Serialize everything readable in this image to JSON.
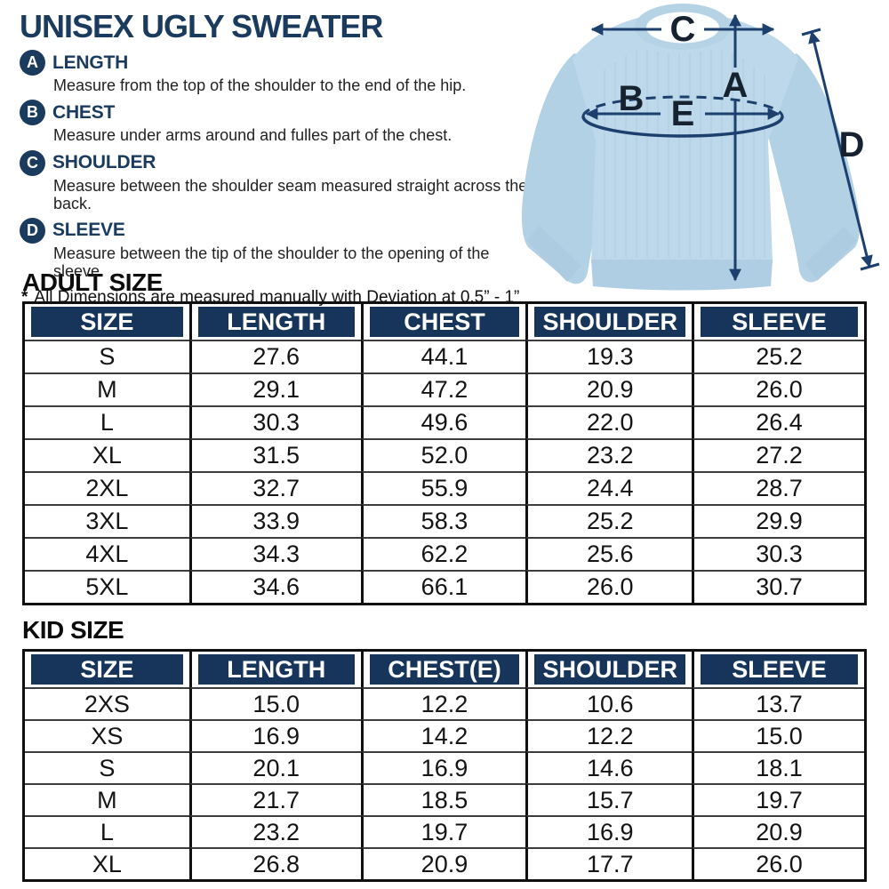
{
  "header": {
    "title": "UNISEX UGLY SWEATER"
  },
  "measurements": [
    {
      "key": "A",
      "label": "LENGTH",
      "description": "Measure from the top of the shoulder to the end of the hip."
    },
    {
      "key": "B",
      "label": "CHEST",
      "description": "Measure under arms around and fulles part of the chest."
    },
    {
      "key": "C",
      "label": "SHOULDER",
      "description": "Measure between the shoulder seam measured straight across the back."
    },
    {
      "key": "D",
      "label": "SLEEVE",
      "description": "Measure between the tip of the shoulder to the opening of the sleeve."
    }
  ],
  "note": {
    "star": "*",
    "text": "All Dimensions are measured manually with Deviation at 0.5” - 1”"
  },
  "diagram": {
    "letters": {
      "a": "A",
      "b": "B",
      "c": "C",
      "d": "D",
      "e": "E"
    }
  },
  "adult_table": {
    "heading": "ADULT SIZE",
    "columns": [
      "SIZE",
      "LENGTH",
      "CHEST",
      "SHOULDER",
      "SLEEVE"
    ],
    "rows": [
      [
        "S",
        "27.6",
        "44.1",
        "19.3",
        "25.2"
      ],
      [
        "M",
        "29.1",
        "47.2",
        "20.9",
        "26.0"
      ],
      [
        "L",
        "30.3",
        "49.6",
        "22.0",
        "26.4"
      ],
      [
        "XL",
        "31.5",
        "52.0",
        "23.2",
        "27.2"
      ],
      [
        "2XL",
        "32.7",
        "55.9",
        "24.4",
        "28.7"
      ],
      [
        "3XL",
        "33.9",
        "58.3",
        "25.2",
        "29.9"
      ],
      [
        "4XL",
        "34.3",
        "62.2",
        "25.6",
        "30.3"
      ],
      [
        "5XL",
        "34.6",
        "66.1",
        "26.0",
        "30.7"
      ]
    ]
  },
  "kid_table": {
    "heading": "KID SIZE",
    "columns": [
      "SIZE",
      "LENGTH",
      "CHEST(E)",
      "SHOULDER",
      "SLEEVE"
    ],
    "rows": [
      [
        "2XS",
        "15.0",
        "12.2",
        "10.6",
        "13.7"
      ],
      [
        "XS",
        "16.9",
        "14.2",
        "12.2",
        "15.0"
      ],
      [
        "S",
        "20.1",
        "16.9",
        "14.6",
        "18.1"
      ],
      [
        "M",
        "21.7",
        "18.5",
        "15.7",
        "19.7"
      ],
      [
        "L",
        "23.2",
        "19.7",
        "16.9",
        "20.9"
      ],
      [
        "XL",
        "26.8",
        "20.9",
        "17.7",
        "26.0"
      ]
    ]
  },
  "colors": {
    "navy": "#1a3a5e",
    "table_header_bg": "#17355a",
    "arrow": "#1c3f6e",
    "diagram_letter": "#16222f",
    "sweater_body": "#bdd8ea",
    "sweater_shade": "#b3d1e5",
    "collar_white": "#fdfefe",
    "border": "#101010"
  }
}
